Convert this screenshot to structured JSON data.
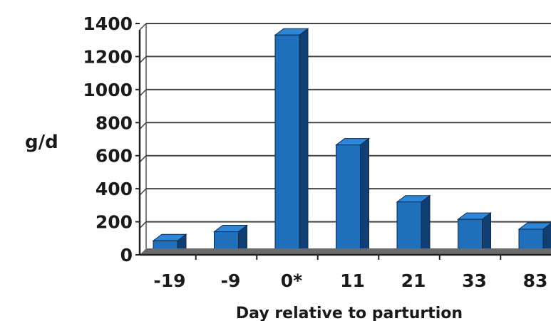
{
  "chart_data": {
    "type": "bar",
    "title": "",
    "xlabel": "Day relative to parturtion",
    "ylabel": "g/d",
    "categories": [
      "-19",
      "-9",
      "0*",
      "11",
      "21",
      "33",
      "83"
    ],
    "values": [
      85,
      140,
      1330,
      665,
      320,
      215,
      155
    ],
    "ylim": [
      0,
      1400
    ],
    "yticks": [
      "0",
      "200",
      "400",
      "600",
      "800",
      "1000",
      "1200",
      "1400"
    ],
    "grid": true,
    "style": "3d-column",
    "bar_color": "#1f6fba",
    "bar_top_color": "#2f86d6",
    "bar_side_color": "#123f73"
  }
}
